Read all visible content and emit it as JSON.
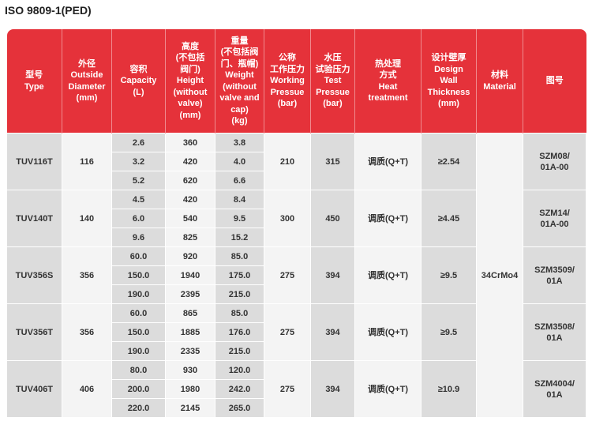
{
  "title": "ISO 9809-1(PED)",
  "table": {
    "header": [
      [
        "型号",
        "Type"
      ],
      [
        "外径",
        "Outside",
        "Diameter",
        "(mm)"
      ],
      [
        "容积",
        "Capacity",
        "(L)"
      ],
      [
        "高度",
        "(不包括",
        "阀门)",
        "Height",
        "(without",
        "valve)",
        "(mm)"
      ],
      [
        "重量",
        "(不包括阀",
        "门、瓶帽)",
        "Weight",
        "(without",
        "valve and",
        "cap)",
        "(kg)"
      ],
      [
        "公称",
        "工作压力",
        "Working",
        "Pressue",
        "(bar)"
      ],
      [
        "水压",
        "试验压力",
        "Test",
        "Pressue",
        "(bar)"
      ],
      [
        "热处理",
        "方式",
        "Heat",
        "treatment"
      ],
      [
        "设计壁厚",
        "Design",
        "Wall",
        "Thickness",
        "(mm)"
      ],
      [
        "材料",
        "Material"
      ],
      [
        "图号"
      ]
    ],
    "material": "34CrMo4",
    "groups": [
      {
        "type": "TUV116T",
        "diameter": "116",
        "rows": [
          [
            "2.6",
            "360",
            "3.8"
          ],
          [
            "3.2",
            "420",
            "4.0"
          ],
          [
            "5.2",
            "620",
            "6.6"
          ]
        ],
        "working": "210",
        "test": "315",
        "heat": "调质(Q+T)",
        "thickness": "≥2.54",
        "drawing": [
          "SZM08/",
          "01A-00"
        ]
      },
      {
        "type": "TUV140T",
        "diameter": "140",
        "rows": [
          [
            "4.5",
            "420",
            "8.4"
          ],
          [
            "6.0",
            "540",
            "9.5"
          ],
          [
            "9.6",
            "825",
            "15.2"
          ]
        ],
        "working": "300",
        "test": "450",
        "heat": "调质(Q+T)",
        "thickness": "≥4.45",
        "drawing": [
          "SZM14/",
          "01A-00"
        ]
      },
      {
        "type": "TUV356S",
        "diameter": "356",
        "rows": [
          [
            "60.0",
            "920",
            "85.0"
          ],
          [
            "150.0",
            "1940",
            "175.0"
          ],
          [
            "190.0",
            "2395",
            "215.0"
          ]
        ],
        "working": "275",
        "test": "394",
        "heat": "调质(Q+T)",
        "thickness": "≥9.5",
        "drawing": [
          "SZM3509/",
          "01A"
        ]
      },
      {
        "type": "TUV356T",
        "diameter": "356",
        "rows": [
          [
            "60.0",
            "865",
            "85.0"
          ],
          [
            "150.0",
            "1885",
            "176.0"
          ],
          [
            "190.0",
            "2335",
            "215.0"
          ]
        ],
        "working": "275",
        "test": "394",
        "heat": "调质(Q+T)",
        "thickness": "≥9.5",
        "drawing": [
          "SZM3508/",
          "01A"
        ]
      },
      {
        "type": "TUV406T",
        "diameter": "406",
        "rows": [
          [
            "80.0",
            "930",
            "120.0"
          ],
          [
            "200.0",
            "1980",
            "242.0"
          ],
          [
            "220.0",
            "2145",
            "265.0"
          ]
        ],
        "working": "275",
        "test": "394",
        "heat": "调质(Q+T)",
        "thickness": "≥10.9",
        "drawing": [
          "SZM4004/",
          "01A"
        ]
      }
    ]
  }
}
